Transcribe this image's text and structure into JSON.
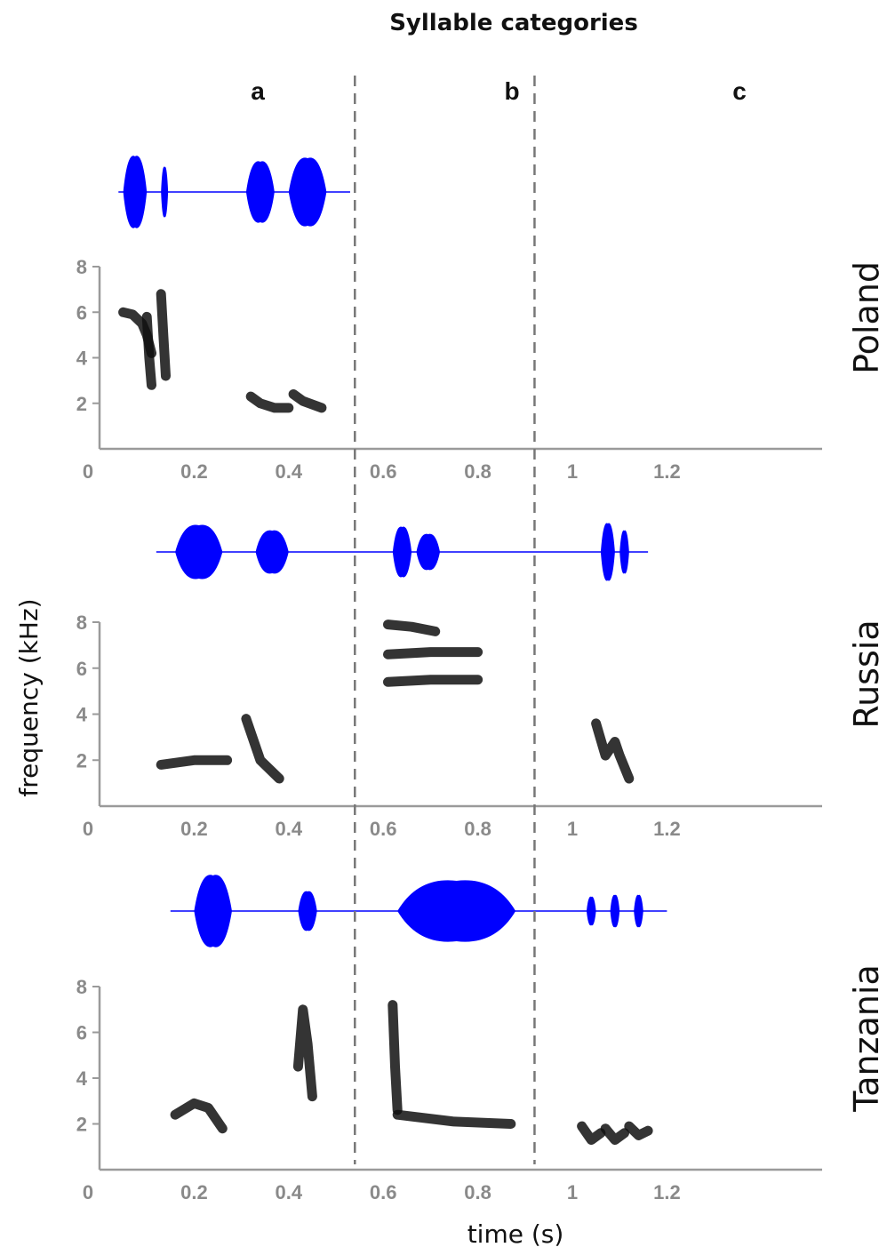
{
  "chart_data": {
    "type": "spectrogram",
    "title": "Syllable categories",
    "categories": [
      "a",
      "b",
      "c"
    ],
    "category_boundaries_s": [
      0.54,
      0.92
    ],
    "xlabel": "time (s)",
    "ylabel": "frequency (kHz)",
    "xlim": [
      0,
      1.25
    ],
    "ylim": [
      0,
      8
    ],
    "xticks": [
      0,
      0.2,
      0.4,
      0.6,
      0.8,
      1,
      1.2
    ],
    "xtick_labels": [
      "0",
      "0.2",
      "0.4",
      "0.6",
      "0.8",
      "1",
      "1.2"
    ],
    "yticks": [
      2,
      4,
      6,
      8
    ],
    "ytick_labels": [
      "2",
      "4",
      "6",
      "8"
    ],
    "colors": {
      "waveform": "#0000ff",
      "spectrogram": "#111111",
      "axis": "#9a9a9a",
      "divider": "#777777"
    },
    "panels": [
      {
        "country": "Poland",
        "waveform_segments": [
          {
            "t0": 0.05,
            "t1": 0.1,
            "amp": 1.0
          },
          {
            "t0": 0.13,
            "t1": 0.145,
            "amp": 0.7
          },
          {
            "t0": 0.31,
            "t1": 0.37,
            "amp": 0.85
          },
          {
            "t0": 0.4,
            "t1": 0.48,
            "amp": 0.95
          }
        ],
        "waveform_extent": [
          0.04,
          0.53
        ],
        "syllables": [
          {
            "t": [
              0.05,
              0.07,
              0.09,
              0.1,
              0.11
            ],
            "f": [
              6.0,
              5.9,
              5.5,
              5.0,
              4.2
            ]
          },
          {
            "t": [
              0.1,
              0.105,
              0.11
            ],
            "f": [
              5.8,
              4.0,
              2.8
            ]
          },
          {
            "t": [
              0.13,
              0.135,
              0.14
            ],
            "f": [
              6.8,
              5.0,
              3.2
            ]
          },
          {
            "t": [
              0.32,
              0.34,
              0.37,
              0.4
            ],
            "f": [
              2.3,
              2.0,
              1.8,
              1.8
            ]
          },
          {
            "t": [
              0.41,
              0.43,
              0.47
            ],
            "f": [
              2.4,
              2.1,
              1.8
            ]
          }
        ]
      },
      {
        "country": "Russia",
        "waveform_segments": [
          {
            "t0": 0.16,
            "t1": 0.26,
            "amp": 0.75
          },
          {
            "t0": 0.33,
            "t1": 0.4,
            "amp": 0.6
          },
          {
            "t0": 0.62,
            "t1": 0.66,
            "amp": 0.7
          },
          {
            "t0": 0.67,
            "t1": 0.72,
            "amp": 0.5
          },
          {
            "t0": 1.06,
            "t1": 1.09,
            "amp": 0.8
          },
          {
            "t0": 1.1,
            "t1": 1.12,
            "amp": 0.6
          }
        ],
        "waveform_extent": [
          0.12,
          1.16
        ],
        "syllables": [
          {
            "t": [
              0.13,
              0.2,
              0.27
            ],
            "f": [
              1.8,
              2.0,
              2.0
            ]
          },
          {
            "t": [
              0.31,
              0.34,
              0.38
            ],
            "f": [
              3.8,
              2.0,
              1.2
            ]
          },
          {
            "t": [
              0.61,
              0.7,
              0.8
            ],
            "f": [
              6.6,
              6.7,
              6.7
            ]
          },
          {
            "t": [
              0.61,
              0.7,
              0.8
            ],
            "f": [
              5.4,
              5.5,
              5.5
            ]
          },
          {
            "t": [
              0.61,
              0.66,
              0.71
            ],
            "f": [
              7.9,
              7.8,
              7.6
            ]
          },
          {
            "t": [
              1.05,
              1.07,
              1.09,
              1.1,
              1.12
            ],
            "f": [
              3.6,
              2.2,
              2.8,
              2.2,
              1.2
            ]
          }
        ]
      },
      {
        "country": "Tanzania",
        "waveform_segments": [
          {
            "t0": 0.2,
            "t1": 0.28,
            "amp": 1.0
          },
          {
            "t0": 0.42,
            "t1": 0.46,
            "amp": 0.55
          },
          {
            "t0": 0.63,
            "t1": 0.88,
            "amp": 0.85
          },
          {
            "t0": 1.03,
            "t1": 1.05,
            "amp": 0.4
          },
          {
            "t0": 1.08,
            "t1": 1.1,
            "amp": 0.45
          },
          {
            "t0": 1.13,
            "t1": 1.15,
            "amp": 0.45
          }
        ],
        "waveform_extent": [
          0.15,
          1.2
        ],
        "syllables": [
          {
            "t": [
              0.16,
              0.2,
              0.23,
              0.26
            ],
            "f": [
              2.4,
              2.9,
              2.7,
              1.8
            ]
          },
          {
            "t": [
              0.42,
              0.43,
              0.44,
              0.45
            ],
            "f": [
              4.5,
              7.0,
              5.5,
              3.2
            ]
          },
          {
            "t": [
              0.62,
              0.625,
              0.63
            ],
            "f": [
              7.2,
              4.5,
              2.6
            ]
          },
          {
            "t": [
              0.63,
              0.75,
              0.87
            ],
            "f": [
              2.4,
              2.1,
              2.0
            ]
          },
          {
            "t": [
              1.02,
              1.04,
              1.06
            ],
            "f": [
              1.9,
              1.3,
              1.6
            ]
          },
          {
            "t": [
              1.07,
              1.09,
              1.11
            ],
            "f": [
              1.8,
              1.3,
              1.6
            ]
          },
          {
            "t": [
              1.12,
              1.14,
              1.16
            ],
            "f": [
              1.9,
              1.5,
              1.7
            ]
          }
        ]
      }
    ]
  }
}
